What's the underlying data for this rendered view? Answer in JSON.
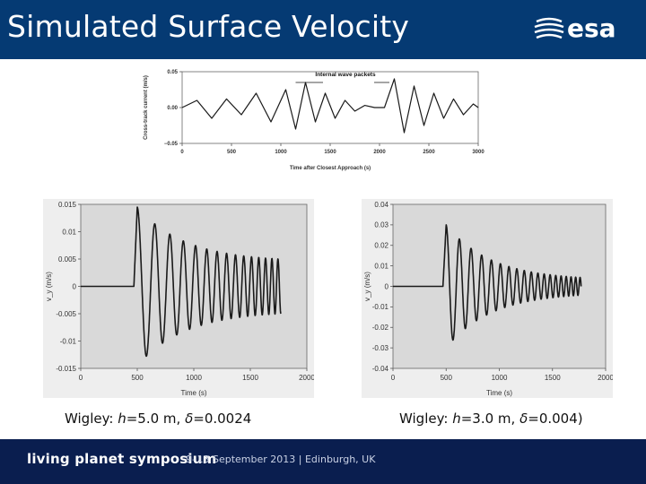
{
  "slide": {
    "title": "Simulated Surface Velocity",
    "logo_text": "esa",
    "footer_main": "living planet symposium",
    "footer_sub": "9–13 September 2013 | Edinburgh, UK",
    "colors": {
      "header": "#053a73",
      "footer": "#0a1e4f",
      "plot_bg": "#d9d9d9",
      "line": "#1a1a1a"
    }
  },
  "captions": {
    "left": {
      "prefix": "Wigley: ",
      "h_sym": "h",
      "h_val": "=5.0 m, ",
      "d_sym": "δ",
      "d_val": "=0.0024"
    },
    "right": {
      "prefix": "Wigley: ",
      "h_sym": "h",
      "h_val": "=3.0 m, ",
      "d_sym": "δ",
      "d_val": "=0.004)"
    }
  },
  "chart_data": [
    {
      "id": "observed",
      "type": "line",
      "title": "",
      "xlabel": "Time after Closest Approach (s)",
      "ylabel": "Cross-track current (m/s)",
      "xlim": [
        0,
        3000
      ],
      "ylim": [
        -0.05,
        0.05
      ],
      "xticks": [
        0,
        500,
        1000,
        1500,
        2000,
        2500,
        3000
      ],
      "yticks": [
        -0.05,
        0.0,
        0.05
      ],
      "ytick_labels": [
        "−0.05",
        "0.00",
        "0.05"
      ],
      "annotation": "Internal wave packets",
      "x": [
        0,
        150,
        300,
        450,
        600,
        750,
        900,
        1050,
        1150,
        1250,
        1350,
        1450,
        1550,
        1650,
        1750,
        1850,
        1950,
        2050,
        2150,
        2250,
        2350,
        2450,
        2550,
        2650,
        2750,
        2850,
        2950,
        3000
      ],
      "y": [
        0.0,
        0.01,
        -0.015,
        0.012,
        -0.01,
        0.02,
        -0.02,
        0.025,
        -0.03,
        0.035,
        -0.02,
        0.02,
        -0.015,
        0.01,
        -0.005,
        0.003,
        0.0,
        0.0,
        0.04,
        -0.035,
        0.03,
        -0.025,
        0.02,
        -0.015,
        0.012,
        -0.01,
        0.005,
        0.0
      ]
    },
    {
      "id": "wigley-h5",
      "type": "line",
      "xlabel": "Time (s)",
      "ylabel": "v_y (m/s)",
      "xlim": [
        0,
        2000
      ],
      "ylim": [
        -0.015,
        0.015
      ],
      "xticks": [
        0,
        500,
        1000,
        1500,
        2000
      ],
      "yticks": [
        -0.015,
        -0.01,
        -0.005,
        0,
        0.005,
        0.01,
        0.015
      ],
      "ytick_labels": [
        "-0.015",
        "-0.01",
        "-0.005",
        "0",
        "0.005",
        "0.01",
        "0.015"
      ],
      "wave": {
        "t_start": 470,
        "t_end": 1770,
        "peak_time": 500,
        "amplitude": 0.0145,
        "initial_period": 190,
        "final_period": 50,
        "final_amplitude": 0.0045
      }
    },
    {
      "id": "wigley-h3",
      "type": "line",
      "xlabel": "Time (s)",
      "ylabel": "v_y (m/s)",
      "xlim": [
        0,
        2000
      ],
      "ylim": [
        -0.04,
        0.04
      ],
      "xticks": [
        0,
        500,
        1000,
        1500,
        2000
      ],
      "yticks": [
        -0.04,
        -0.03,
        -0.02,
        -0.01,
        0,
        0.01,
        0.02,
        0.03,
        0.04
      ],
      "ytick_labels": [
        "-0.04",
        "-0.03",
        "-0.02",
        "-0.01",
        "0",
        "0.01",
        "0.02",
        "0.03",
        "0.04"
      ],
      "wave": {
        "t_start": 470,
        "t_end": 1770,
        "peak_time": 500,
        "amplitude": 0.03,
        "initial_period": 150,
        "final_period": 40,
        "final_amplitude": 0.003
      }
    }
  ]
}
